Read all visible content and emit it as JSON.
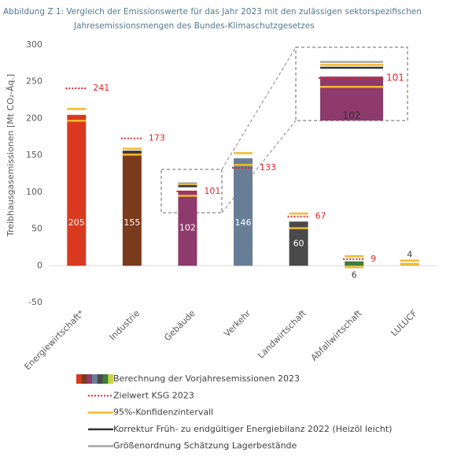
{
  "chart_data": {
    "type": "bar",
    "title": [
      "Abbildung Z 1:  Vergleich der Emissionswerte für das Jahr 2023 mit den zulässigen sektorspezifischen",
      "Jahresemissionsmengen des Bundes-Klimaschutzgesetzes"
    ],
    "y_label": "Treibhausgasemissionen [Mt CO₂-Äq.]",
    "categories": [
      "Energiewirtschaft*",
      "Industrie",
      "Gebäude",
      "Verkehr",
      "Landwirtschaft",
      "Abfallwirtschaft",
      "LULUCF"
    ],
    "ylim": [
      -50,
      300
    ],
    "yticks": [
      -50,
      0,
      50,
      100,
      150,
      200,
      250,
      300
    ],
    "grid": false,
    "zoom_category": 2,
    "zoom_ylim": [
      72,
      122
    ],
    "series": [
      {
        "name": "Berechnung der Vorjahresemissionen 2023",
        "kind": "bar",
        "colors": [
          "#d93a1f",
          "#7a3b1c",
          "#8e3a6c",
          "#687e97",
          "#4a4a4a",
          "#3e7d3a",
          "#c9d24a"
        ],
        "values": [
          205,
          155,
          102,
          146,
          60,
          6,
          4
        ]
      },
      {
        "name": "Zielwert KSG 2023",
        "kind": "target",
        "color": "#e0262b",
        "values": [
          241,
          173,
          101,
          133,
          67,
          9,
          null
        ]
      },
      {
        "name": "95%-Konfidenzintervall",
        "kind": "interval",
        "color": "#f5b82e",
        "low": [
          197,
          151,
          95,
          137,
          51,
          -2,
          2
        ],
        "high": [
          213,
          159,
          110,
          153,
          71,
          13,
          7
        ]
      },
      {
        "name": "Korrektur Früh- zu endgültiger Energiebilanz 2022 (Heizöl leicht)",
        "kind": "level",
        "color": "#333333",
        "values": [
          null,
          155,
          108,
          null,
          null,
          null,
          null
        ]
      },
      {
        "name": "Größenordnung Schätzung Lagerbestände",
        "kind": "level",
        "color": "#a8a8a8",
        "values": [
          null,
          null,
          112,
          null,
          null,
          null,
          null
        ]
      }
    ]
  }
}
